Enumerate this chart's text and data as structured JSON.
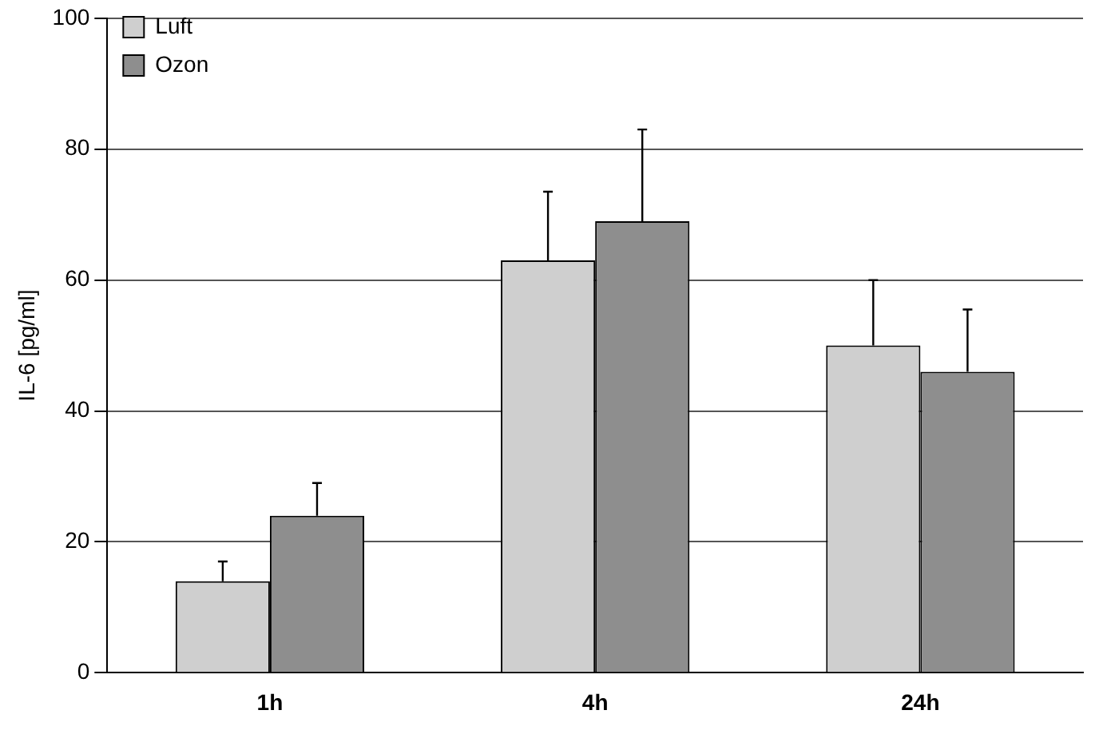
{
  "chart_data": {
    "type": "bar",
    "ylabel": "IL-6 [pg/ml]",
    "categories": [
      "1h",
      "4h",
      "24h"
    ],
    "series": [
      {
        "name": "Luft",
        "color": "#cfcfcf",
        "values": [
          14,
          63,
          50
        ],
        "errors": [
          [
            14,
            17
          ],
          [
            63,
            73.5
          ],
          [
            50,
            60
          ]
        ]
      },
      {
        "name": "Ozon",
        "color": "#8e8e8e",
        "values": [
          24,
          69,
          46
        ],
        "errors": [
          [
            24,
            29
          ],
          [
            69,
            83
          ],
          [
            46,
            55.5
          ]
        ]
      }
    ],
    "ylim": [
      0,
      100
    ],
    "yticks": [
      0,
      20,
      40,
      60,
      80,
      100
    ],
    "grid": "y",
    "legend": "top left"
  }
}
